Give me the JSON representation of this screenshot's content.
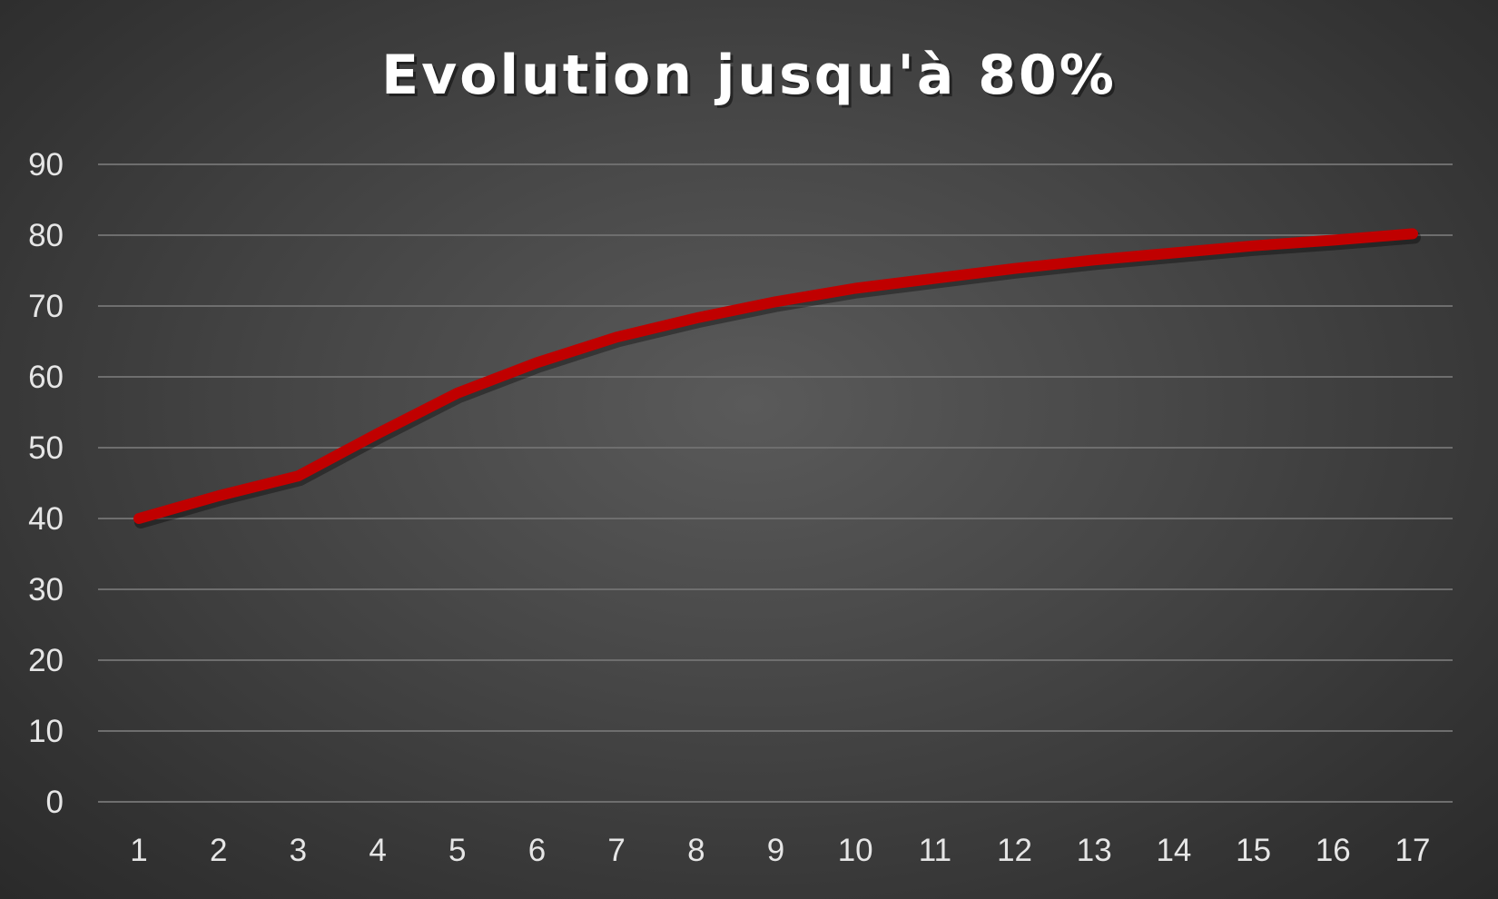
{
  "chart_data": {
    "type": "line",
    "title": "Evolution jusqu'à 80%",
    "xlabel": "",
    "ylabel": "",
    "categories": [
      "1",
      "2",
      "3",
      "4",
      "5",
      "6",
      "7",
      "8",
      "9",
      "10",
      "11",
      "12",
      "13",
      "14",
      "15",
      "16",
      "17"
    ],
    "series": [
      {
        "values": [
          40,
          43.2,
          46,
          52,
          57.7,
          62,
          65.6,
          68.3,
          70.6,
          72.5,
          73.9,
          75.3,
          76.5,
          77.5,
          78.5,
          79.3,
          80.2
        ]
      }
    ],
    "ylim": [
      0,
      90
    ],
    "yticks": [
      0,
      10,
      20,
      30,
      40,
      50,
      60,
      70,
      80,
      90
    ],
    "grid": true,
    "legend": "none",
    "colors": {
      "line": "#c00000",
      "background": "#474747",
      "grid": "#6e6e6e",
      "text": "#e6e6e6"
    }
  }
}
